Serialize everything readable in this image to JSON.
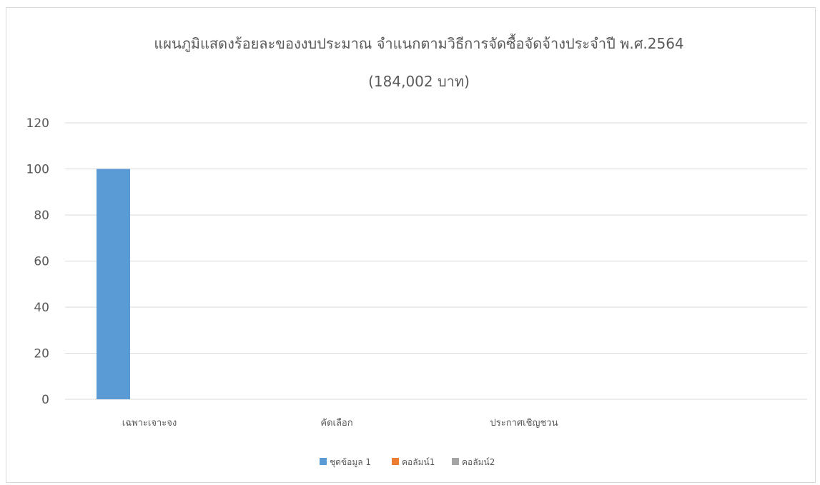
{
  "chart_data": {
    "type": "bar",
    "title": "แผนภูมิแสดงร้อยละของงบประมาณ จำแนกตามวิธีการจัดซื้อจัดจ้างประจำปี พ.ศ.2564",
    "subtitle": "(184,002 บาท)",
    "xlabel": "",
    "ylabel": "",
    "categories": [
      "เฉพาะเจาะจง",
      "คัดเลือก",
      "ประกาศเชิญชวน"
    ],
    "series": [
      {
        "name": "ชุดข้อมูล 1",
        "values": [
          100,
          0,
          0
        ],
        "color": "#5b9bd5"
      },
      {
        "name": "คอลัมน์1",
        "values": [
          0,
          0,
          0
        ],
        "color": "#ed7d31"
      },
      {
        "name": "คอลัมน์2",
        "values": [
          0,
          0,
          0
        ],
        "color": "#a5a5a5"
      }
    ],
    "ylim": [
      0,
      120
    ],
    "yticks": [
      0,
      20,
      40,
      60,
      80,
      100,
      120
    ],
    "grid": true,
    "legend_position": "bottom"
  }
}
